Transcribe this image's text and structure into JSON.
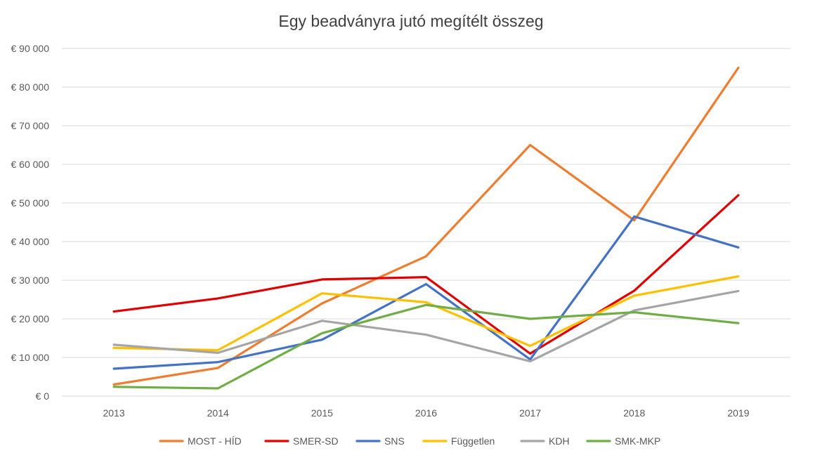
{
  "chart_data": {
    "type": "line",
    "title": "Egy beadványra jutó megítélt összeg",
    "xlabel": "",
    "ylabel": "",
    "categories": [
      "2013",
      "2014",
      "2015",
      "2016",
      "2017",
      "2018",
      "2019"
    ],
    "ylim": [
      0,
      90000
    ],
    "yticks": [
      0,
      10000,
      20000,
      30000,
      40000,
      50000,
      60000,
      70000,
      80000,
      90000
    ],
    "ytick_labels": [
      "€ 0",
      "€ 10 000",
      "€ 20 000",
      "€ 30 000",
      "€ 40 000",
      "€ 50 000",
      "€ 60 000",
      "€ 70 000",
      "€ 80 000",
      "€ 90 000"
    ],
    "grid": true,
    "legend_position": "bottom",
    "series": [
      {
        "name": "MOST - HÍD",
        "color": "#ED7D31",
        "values": [
          3000,
          7300,
          24000,
          36200,
          65000,
          45500,
          85000
        ]
      },
      {
        "name": "SMER-SD",
        "color": "#E00000",
        "values": [
          21900,
          25300,
          30200,
          30800,
          11000,
          27300,
          52000
        ]
      },
      {
        "name": "SNS",
        "color": "#4472C4",
        "values": [
          7100,
          8800,
          14600,
          29000,
          9500,
          46500,
          38500
        ]
      },
      {
        "name": "Független",
        "color": "#FFC000",
        "values": [
          12500,
          11900,
          26600,
          24300,
          13000,
          26000,
          31000
        ]
      },
      {
        "name": "KDH",
        "color": "#A5A5A5",
        "values": [
          13300,
          11200,
          19500,
          15900,
          9000,
          22200,
          27200
        ]
      },
      {
        "name": "SMK-MKP",
        "color": "#70AD47",
        "values": [
          2400,
          2000,
          16300,
          23600,
          20000,
          21700,
          18900
        ]
      }
    ]
  }
}
